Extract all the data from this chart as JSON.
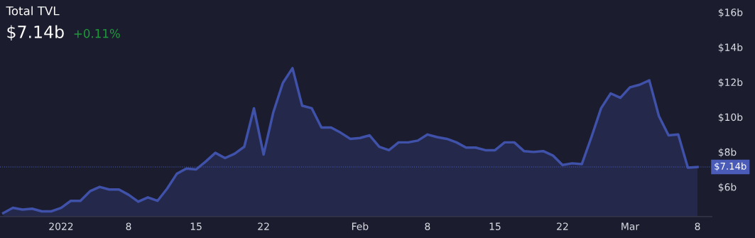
{
  "chart_data": {
    "type": "area",
    "title": "Total TVL",
    "subtitle": "$7.14b",
    "annotations": [
      "+0.11%"
    ],
    "x": [
      "2021-12-26",
      "2021-12-27",
      "2021-12-28",
      "2021-12-29",
      "2021-12-30",
      "2021-12-31",
      "2022-01-01",
      "2022-01-02",
      "2022-01-03",
      "2022-01-04",
      "2022-01-05",
      "2022-01-06",
      "2022-01-07",
      "2022-01-08",
      "2022-01-09",
      "2022-01-10",
      "2022-01-11",
      "2022-01-12",
      "2022-01-13",
      "2022-01-14",
      "2022-01-15",
      "2022-01-16",
      "2022-01-17",
      "2022-01-18",
      "2022-01-19",
      "2022-01-20",
      "2022-01-21",
      "2022-01-22",
      "2022-01-23",
      "2022-01-24",
      "2022-01-25",
      "2022-01-26",
      "2022-01-27",
      "2022-01-28",
      "2022-01-29",
      "2022-01-30",
      "2022-01-31",
      "2022-02-01",
      "2022-02-02",
      "2022-02-03",
      "2022-02-04",
      "2022-02-05",
      "2022-02-06",
      "2022-02-07",
      "2022-02-08",
      "2022-02-09",
      "2022-02-10",
      "2022-02-11",
      "2022-02-12",
      "2022-02-13",
      "2022-02-14",
      "2022-02-15",
      "2022-02-16",
      "2022-02-17",
      "2022-02-18",
      "2022-02-19",
      "2022-02-20",
      "2022-02-21",
      "2022-02-22",
      "2022-02-23",
      "2022-02-24",
      "2022-02-25",
      "2022-02-26",
      "2022-02-27",
      "2022-02-28",
      "2022-03-01",
      "2022-03-02",
      "2022-03-03",
      "2022-03-04",
      "2022-03-05",
      "2022-03-06",
      "2022-03-07",
      "2022-03-08"
    ],
    "series": [
      {
        "color": "#3f51a8",
        "values": [
          4.5,
          4.8,
          4.7,
          4.75,
          4.6,
          4.6,
          4.8,
          5.2,
          5.2,
          5.75,
          6.0,
          5.85,
          5.85,
          5.55,
          5.15,
          5.4,
          5.2,
          5.9,
          6.75,
          7.05,
          7.0,
          7.45,
          7.95,
          7.65,
          7.9,
          8.3,
          10.5,
          7.85,
          10.25,
          11.95,
          12.8,
          10.65,
          10.5,
          9.4,
          9.4,
          9.1,
          8.75,
          8.8,
          8.95,
          8.3,
          8.1,
          8.55,
          8.55,
          8.65,
          9.0,
          8.85,
          8.75,
          8.55,
          8.25,
          8.25,
          8.1,
          8.1,
          8.55,
          8.55,
          8.05,
          8.0,
          8.05,
          7.8,
          7.25,
          7.35,
          7.3,
          8.85,
          10.5,
          11.35,
          11.1,
          11.7,
          11.85,
          12.1,
          10.05,
          8.95,
          9.0,
          7.1,
          7.14
        ]
      }
    ],
    "xlim": [
      "2021-12-25T16:00",
      "2022-03-09T12:00"
    ],
    "xticks": [
      {
        "value": "2022-01-01",
        "label": "2022"
      },
      {
        "value": "2022-01-08",
        "label": "8"
      },
      {
        "value": "2022-01-15",
        "label": "15"
      },
      {
        "value": "2022-01-22",
        "label": "22"
      },
      {
        "value": "2022-02-01",
        "label": "Feb"
      },
      {
        "value": "2022-02-08",
        "label": "8"
      },
      {
        "value": "2022-02-15",
        "label": "15"
      },
      {
        "value": "2022-02-22",
        "label": "22"
      },
      {
        "value": "2022-03-01",
        "label": "Mar"
      },
      {
        "value": "2022-03-08",
        "label": "8"
      }
    ],
    "ylim": [
      4.3,
      16.7
    ],
    "yticks": [
      {
        "value": 6,
        "label": "$6b"
      },
      {
        "value": 8,
        "label": "$8b"
      },
      {
        "value": 10,
        "label": "$10b"
      },
      {
        "value": 12,
        "label": "$12b"
      },
      {
        "value": 14,
        "label": "$14b"
      },
      {
        "value": 16,
        "label": "$16b"
      }
    ],
    "ref_lines": [
      {
        "axis": "y",
        "value": 7.14,
        "label": "$7.14b",
        "color": "#4a5bb8",
        "line_style": "dotted"
      }
    ],
    "grid": false,
    "legend": false
  }
}
